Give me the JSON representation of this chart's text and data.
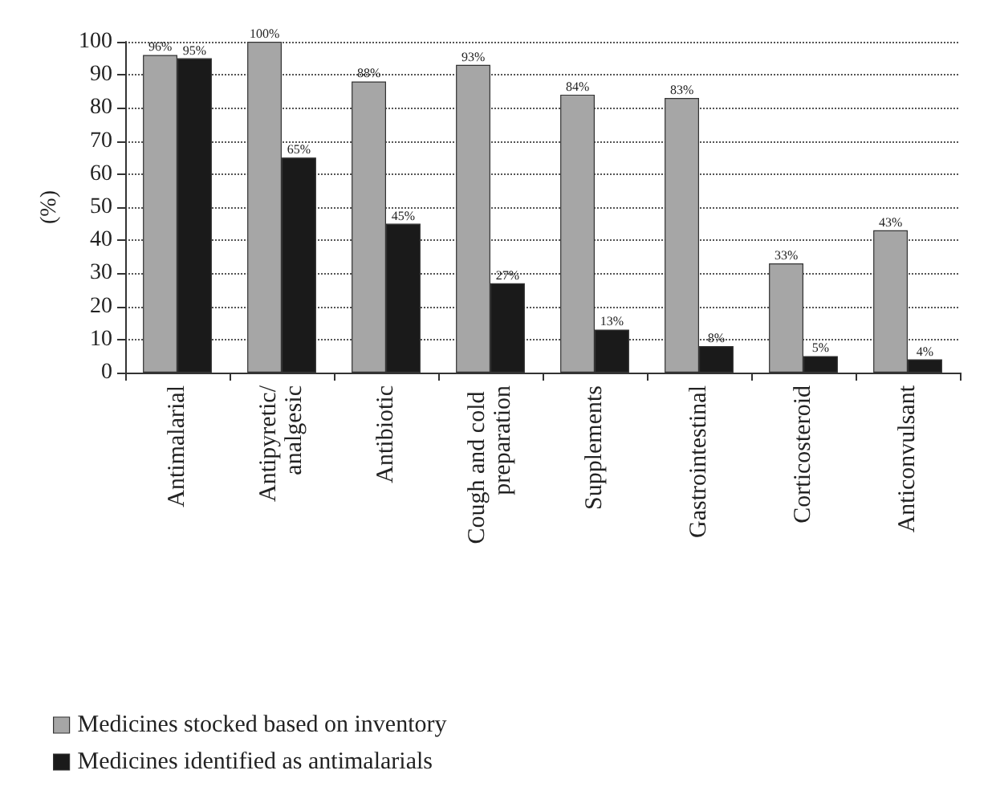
{
  "chart_data": {
    "type": "bar",
    "ylabel": "(%)",
    "categories": [
      "Antimalarial",
      "Antipyretic/analgesic",
      "Antibiotic",
      "Cough and cold preparation",
      "Supplements",
      "Gastrointestinal",
      "Corticosteroid",
      "Anticonvulsant"
    ],
    "series": [
      {
        "name": "Medicines stocked based on inventory",
        "color": "#a6a6a6",
        "values": [
          96,
          100,
          88,
          93,
          84,
          83,
          33,
          43
        ],
        "value_labels": [
          "96%",
          "100%",
          "88%",
          "93%",
          "84%",
          "83%",
          "33%",
          "43%"
        ]
      },
      {
        "name": "Medicines identified as antimalarials",
        "color": "#1a1a1a",
        "values": [
          95,
          65,
          45,
          27,
          13,
          8,
          5,
          4
        ],
        "value_labels": [
          "95%",
          "65%",
          "45%",
          "27%",
          "13%",
          "8%",
          "5%",
          "4%"
        ]
      }
    ],
    "ylim": [
      0,
      100
    ],
    "yticks": [
      0,
      10,
      20,
      30,
      40,
      50,
      60,
      70,
      80,
      90,
      100
    ],
    "grid": "y",
    "legend": "bottom left"
  }
}
